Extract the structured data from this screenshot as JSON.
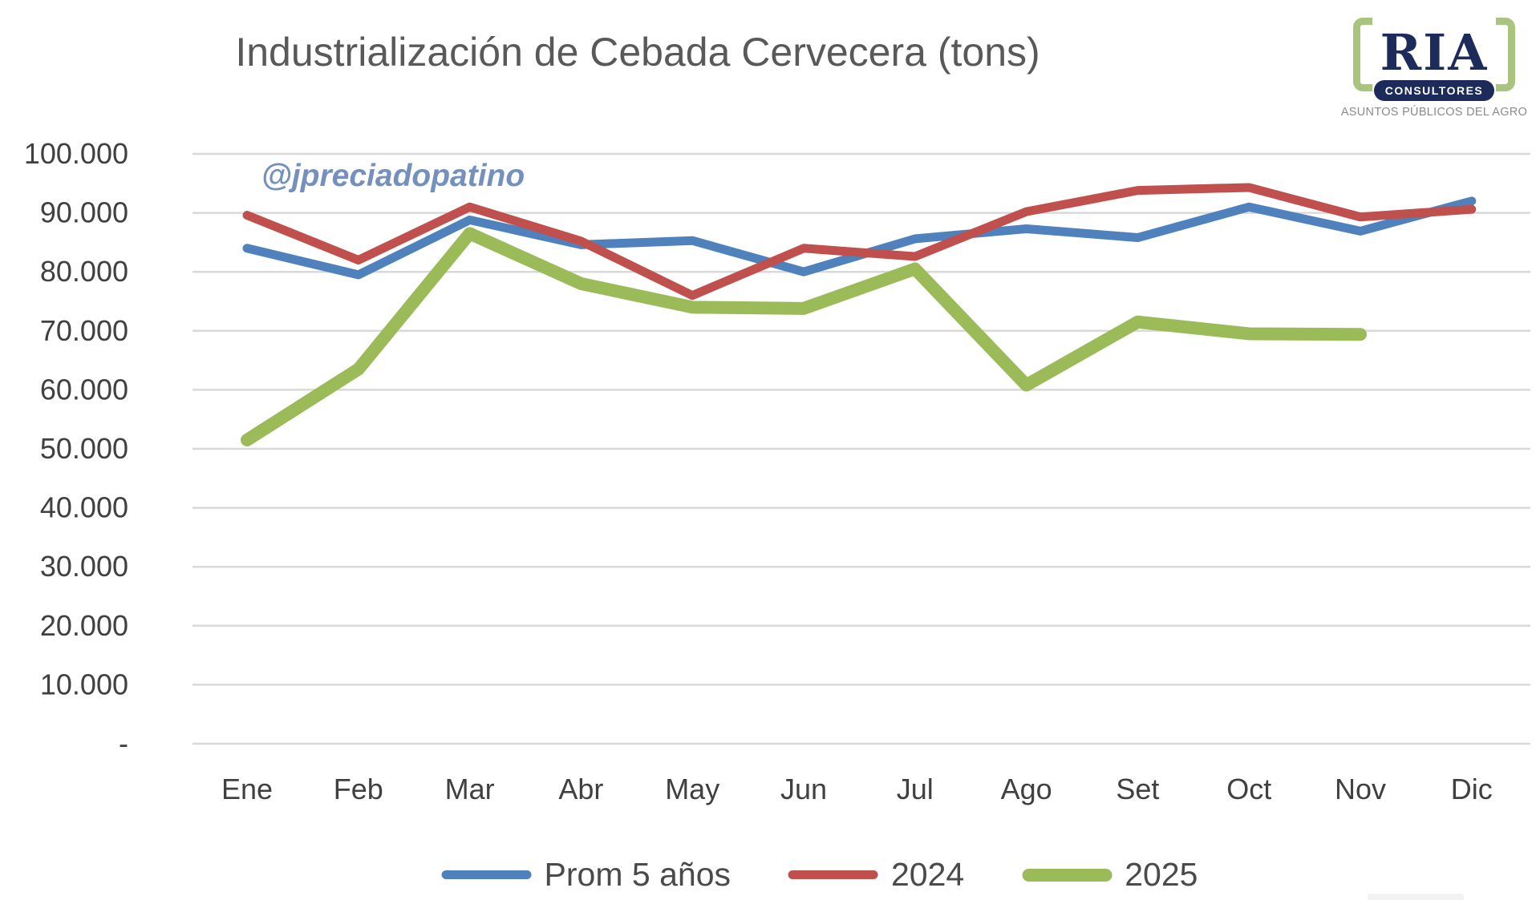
{
  "title": "Industrialización de Cebada Cervecera (tons)",
  "watermark": "@jpreciadopatino",
  "logo": {
    "name": "RIA",
    "subtitle": "CONSULTORES",
    "tagline": "ASUNTOS PÚBLICOS DEL AGRO",
    "navy": "#1C2B59",
    "bracket_green": "#A9C47F"
  },
  "colors": {
    "grid": "#D9D9D9",
    "axis_text": "#404040",
    "title_text": "#595959",
    "watermark_text": "#7590BF"
  },
  "chart_data": {
    "type": "line",
    "title": "Industrialización de Cebada Cervecera (tons)",
    "xlabel": "",
    "ylabel": "",
    "ylim": [
      0,
      100000
    ],
    "grid": "horizontal",
    "legend_position": "bottom",
    "categories": [
      "Ene",
      "Feb",
      "Mar",
      "Abr",
      "May",
      "Jun",
      "Jul",
      "Ago",
      "Set",
      "Oct",
      "Nov",
      "Dic"
    ],
    "y_ticks": [
      {
        "label": "100.000",
        "value": 100000
      },
      {
        "label": "90.000",
        "value": 90000
      },
      {
        "label": "80.000",
        "value": 80000
      },
      {
        "label": "70.000",
        "value": 70000
      },
      {
        "label": "60.000",
        "value": 60000
      },
      {
        "label": "50.000",
        "value": 50000
      },
      {
        "label": "40.000",
        "value": 40000
      },
      {
        "label": "30.000",
        "value": 30000
      },
      {
        "label": "20.000",
        "value": 20000
      },
      {
        "label": "10.000",
        "value": 10000
      },
      {
        "label": "-",
        "value": 0
      }
    ],
    "series": [
      {
        "name": "Prom 5 años",
        "color": "#4F81BD",
        "line_width": 11,
        "values": [
          84000,
          79500,
          88800,
          84600,
          85300,
          80000,
          85600,
          87300,
          85800,
          91000,
          86900,
          92000
        ]
      },
      {
        "name": "2024",
        "color": "#C0504D",
        "line_width": 11,
        "values": [
          89600,
          82000,
          91000,
          85200,
          76000,
          84000,
          82600,
          90200,
          93800,
          94300,
          89300,
          90600
        ]
      },
      {
        "name": "2025",
        "color": "#9BBB59",
        "line_width": 16,
        "values": [
          51500,
          63500,
          86500,
          78000,
          74000,
          73800,
          80500,
          60800,
          71500,
          69500,
          69400,
          null
        ]
      }
    ]
  }
}
